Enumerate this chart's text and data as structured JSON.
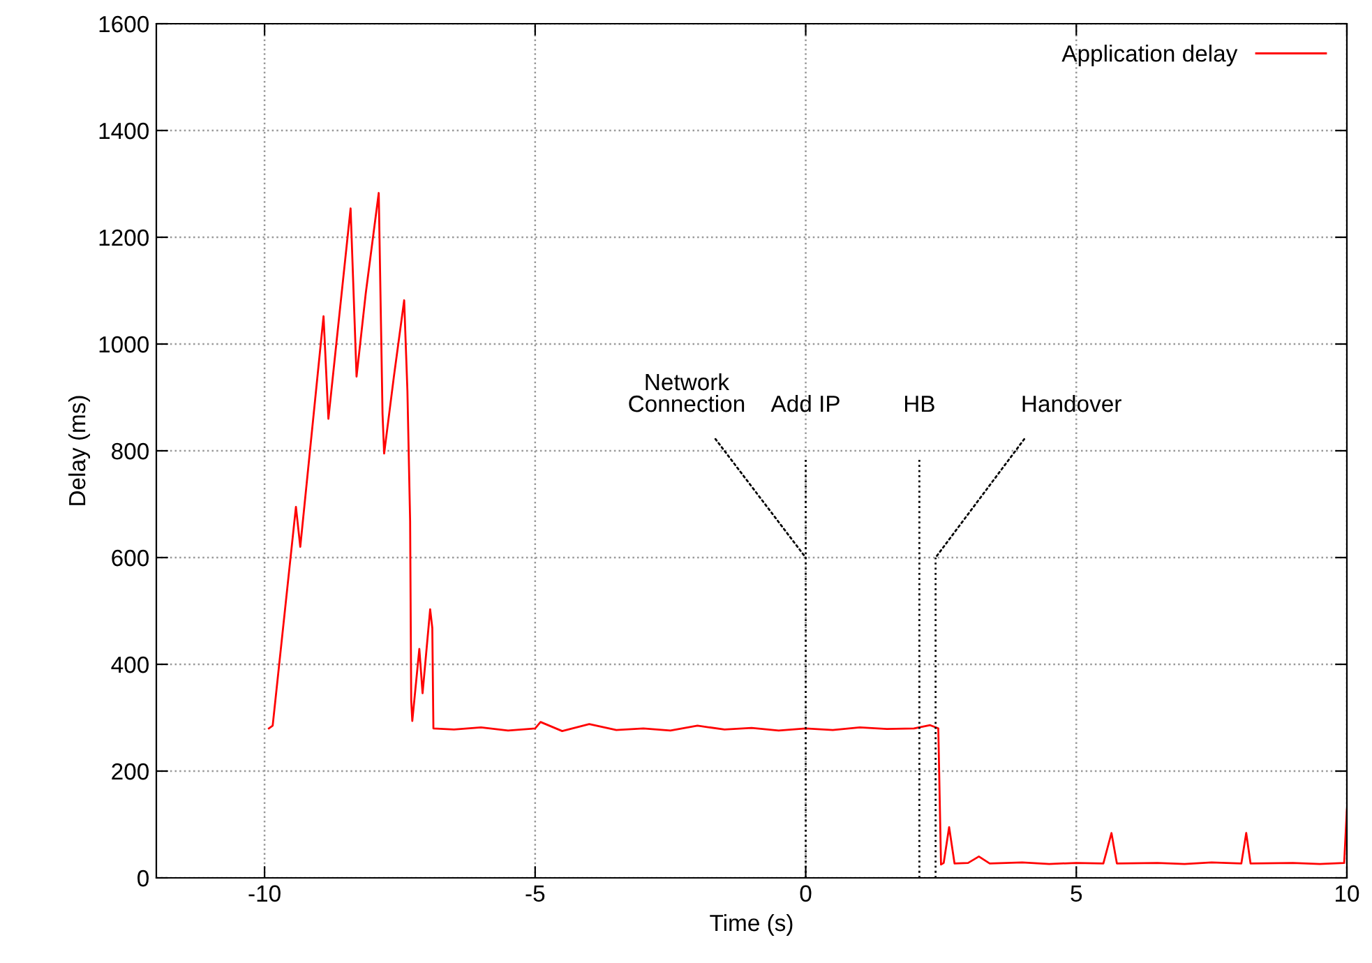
{
  "chart_data": {
    "type": "line",
    "xlabel": "Time (s)",
    "ylabel": "Delay (ms)",
    "series": [
      {
        "name": "Application delay",
        "color": "#ff0000",
        "x": [
          -9.92,
          -9.85,
          -9.42,
          -9.34,
          -8.91,
          -8.82,
          -8.41,
          -8.3,
          -8.13,
          -7.89,
          -7.82,
          -7.79,
          -7.61,
          -7.42,
          -7.36,
          -7.31,
          -7.29,
          -7.27,
          -7.14,
          -7.08,
          -6.94,
          -6.9,
          -6.88,
          -6.5,
          -6.0,
          -5.5,
          -5.0,
          -4.9,
          -4.5,
          -4.0,
          -3.5,
          -3.0,
          -2.5,
          -2.0,
          -1.5,
          -1.0,
          -0.5,
          0.0,
          0.5,
          1.0,
          1.5,
          2.0,
          2.3,
          2.45,
          2.5,
          2.55,
          2.65,
          2.75,
          3.0,
          3.2,
          3.4,
          4.0,
          4.5,
          5.0,
          5.5,
          5.65,
          5.75,
          6.5,
          7.0,
          7.5,
          8.05,
          8.14,
          8.22,
          9.0,
          9.5,
          9.95,
          10.0
        ],
        "values": [
          280,
          285,
          695,
          620,
          1052,
          860,
          1254,
          939,
          1095,
          1283,
          869,
          795,
          939,
          1082,
          912,
          668,
          333,
          294,
          429,
          346,
          503,
          468,
          280,
          278,
          282,
          276,
          280,
          292,
          275,
          288,
          277,
          280,
          276,
          285,
          278,
          281,
          276,
          280,
          277,
          282,
          279,
          280,
          286,
          280,
          25,
          28,
          95,
          27,
          28,
          40,
          27,
          29,
          26,
          28,
          27,
          84,
          27,
          28,
          26,
          29,
          27,
          84,
          27,
          28,
          26,
          28,
          128
        ]
      }
    ],
    "xlim": [
      -12,
      10
    ],
    "ylim": [
      0,
      1600
    ],
    "xticks": [
      -10,
      -5,
      0,
      5,
      10
    ],
    "yticks": [
      0,
      200,
      400,
      600,
      800,
      1000,
      1200,
      1400,
      1600
    ],
    "grid": true,
    "legend": "top right",
    "line_style": "solid",
    "marker": "none",
    "ref_lines": [
      {
        "axis": "x",
        "value": 0,
        "label": "Add IP",
        "line_style": "dotted",
        "color": "#000000"
      },
      {
        "axis": "x",
        "value": 2.1,
        "label": "HB",
        "line_style": "dotted",
        "color": "#000000"
      },
      {
        "axis": "x",
        "value": 2.4,
        "label": "Handover",
        "line_style": "dotted",
        "color": "#000000"
      }
    ],
    "annotations": [
      {
        "text": "Network\nConnection",
        "x": 0,
        "y": 600
      }
    ]
  }
}
